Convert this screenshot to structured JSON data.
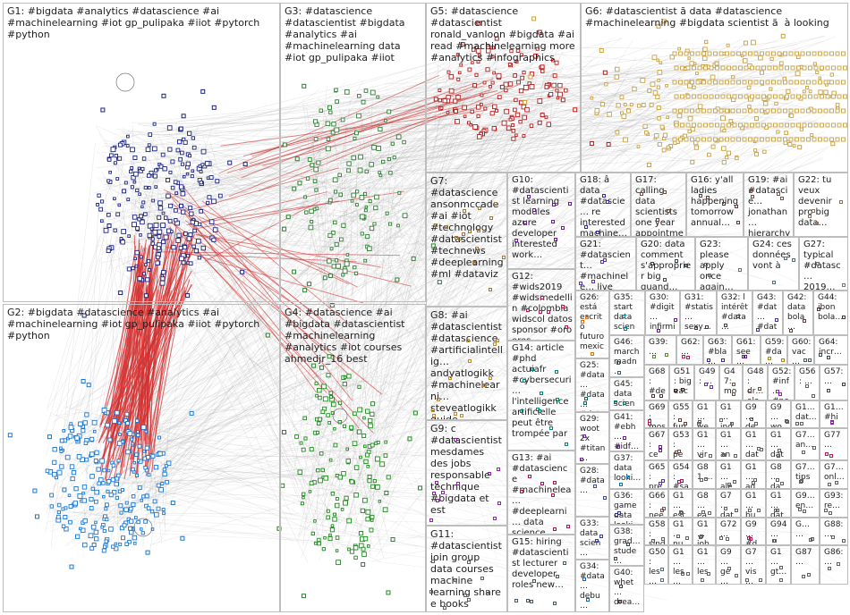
{
  "groups": [
    {
      "id": "G1",
      "label": "G1: #bigdata #analytics #datascience #ai #machinelearning #iot gp_pulipaka #iiot #pytorch #python",
      "color": "#1a237e"
    },
    {
      "id": "G2",
      "label": "G2: #bigdata #datascience #analytics #ai #machinelearning #iot gp_pulipaka #iiot #pytorch #python",
      "color": "#1976d2"
    },
    {
      "id": "G3",
      "label": "G3: #datascience #datascientist #bigdata #analytics #ai #machinelearning data #iot gp_pulipaka #iiot",
      "color": "#2e7d32"
    },
    {
      "id": "G4",
      "label": "G4: #datascience #ai #bigdata #datascientist #machinelearning #analytics #iot courses ahmedjr_16 best",
      "color": "#1b8a1b"
    },
    {
      "id": "G5",
      "label": "G5: #datascience #datascientist ronald_vanloon #bigdata #ai read #machinelearning more #analytics #infographics",
      "color": "#b71c1c"
    },
    {
      "id": "G6",
      "label": "G6: #datascientist ã data #datascience #machinelearning #bigdata scientist ã  à looking",
      "color": "#c8a040"
    },
    {
      "id": "G7",
      "label": "G7: #datascience ansonmccade #ai #iot #technology #datascientist #technews #deeplearning #ml #dataviz",
      "color": "#9c7a3c"
    },
    {
      "id": "G8",
      "label": "G8: #ai #datascientist #datascience #artificialintellig… andyatlogikk #machinelearni… steveatlogikk guide #dataengineerin…",
      "color": "#c28a2c"
    },
    {
      "id": "G9",
      "label": "G9: c #datascientist mesdames des jobs responsable technique #bigdata et est",
      "color": "#8e24aa"
    },
    {
      "id": "G10",
      "label": "G10: #datascientist learning modules azure developer interested work…",
      "color": "#6a1b9a"
    },
    {
      "id": "G11",
      "label": "G11: #datascientist join group data courses machine learning share e books",
      "color": "#616161"
    },
    {
      "id": "G12",
      "label": "G12: #wids2019 #widsmedellin #colombia widscol datos sponsor #oro eres…",
      "color": "#c2185b"
    },
    {
      "id": "G13",
      "label": "G13: #ai #datascience #machinelea… #deeplearni… data science #datascientist learn…",
      "color": "#ad1457"
    },
    {
      "id": "G14",
      "label": "G14: article #phd actuiafr #cybersecuri… l'intelligence artificielle peut être trompée par",
      "color": "#00897b"
    },
    {
      "id": "G15",
      "label": "G15: hiring #datascientist lecturer developer roles new…",
      "color": "#455a64"
    },
    {
      "id": "G16",
      "label": "G16: y'all ladies happening tomorrow annual…",
      "color": "#5d4037"
    },
    {
      "id": "G17",
      "label": "G17: calling data scientists one year appointme…",
      "color": "#6d4c41"
    },
    {
      "id": "G18",
      "label": "G18: â data #datascie… re interested machine…",
      "color": "#4527a0"
    },
    {
      "id": "G19",
      "label": "G19: #ai #datascie… jonathan… hierarchy needs…",
      "color": "#795548"
    },
    {
      "id": "G20",
      "label": "G20: data comment s'approprier big quand…",
      "color": "#37474f"
    },
    {
      "id": "G21",
      "label": "G21: #datascient… #machinele… live join…",
      "color": "#5e35b1"
    },
    {
      "id": "G22",
      "label": "G22: tu veux devenir pro big data…",
      "color": "#8d6e63"
    },
    {
      "id": "G23",
      "label": "G23: please apply once again…",
      "color": "#6d6d6d"
    },
    {
      "id": "G24",
      "label": "G24: ces données vont à",
      "color": "#546e7a"
    },
    {
      "id": "G25",
      "label": "G25: #data… #data… #data… #data…",
      "color": "#00695c"
    },
    {
      "id": "G26",
      "label": "G26: está escrito futuro mexic…",
      "color": "#ef6c00"
    },
    {
      "id": "G27",
      "label": "G27: typical #datasc… 2019…",
      "color": "#757575"
    },
    {
      "id": "G28",
      "label": "G28: #data…",
      "color": "#3949ab"
    },
    {
      "id": "G29",
      "label": "G29: woot 2x #titan…",
      "color": "#7b1fa2"
    },
    {
      "id": "G30",
      "label": "G30: #digit… infirmi…",
      "color": "#6a1b9a"
    },
    {
      "id": "G31",
      "label": "G31: #statis… sexy…",
      "color": "#4e342e"
    },
    {
      "id": "G32",
      "label": "G32: l intérêt #data…",
      "color": "#424242"
    },
    {
      "id": "G33",
      "label": "G33: data scien…",
      "color": "#303f9f"
    },
    {
      "id": "G34",
      "label": "G34: #data… debu…",
      "color": "#1565c0"
    },
    {
      "id": "G35",
      "label": "G35: start data scien…",
      "color": "#00838f"
    },
    {
      "id": "G36",
      "label": "G36: game data looki…",
      "color": "#283593"
    },
    {
      "id": "G37",
      "label": "G37: data looki…",
      "color": "#0277bd"
    },
    {
      "id": "G38",
      "label": "G38: grad… stude…",
      "color": "#37474f"
    },
    {
      "id": "G39",
      "label": "G39: …",
      "color": "#558b2f"
    },
    {
      "id": "G40",
      "label": "G40: whet… drea…",
      "color": "#4e342e"
    },
    {
      "id": "G41",
      "label": "G41: #ebh… #idf…",
      "color": "#6a1b9a"
    },
    {
      "id": "G42",
      "label": "G42: data bola…",
      "color": "#5d4037"
    },
    {
      "id": "G43",
      "label": "G43: #dat… #dat…",
      "color": "#512da8"
    },
    {
      "id": "G44",
      "label": "G44: ibon bola…",
      "color": "#4e342e"
    },
    {
      "id": "G45",
      "label": "G45: data scien…",
      "color": "#00796b"
    },
    {
      "id": "G46",
      "label": "G46: march madn…",
      "color": "#455a64"
    },
    {
      "id": "G47",
      "label": "G47: mo…",
      "color": "#795548"
    },
    {
      "id": "G48",
      "label": "G48: dr… ala…",
      "color": "#6d4c41"
    },
    {
      "id": "G49",
      "label": "G49: …",
      "color": "#5e35b1"
    },
    {
      "id": "G50",
      "label": "G50: les…",
      "color": "#546e7a"
    },
    {
      "id": "G51",
      "label": "G51: big eac…",
      "color": "#3e2723"
    },
    {
      "id": "G52",
      "label": "G52: #inf… #ne…",
      "color": "#8e24aa"
    },
    {
      "id": "G53",
      "label": "G53: pe… #af…",
      "color": "#6d4c41"
    },
    {
      "id": "G54",
      "label": "G54: #sa… #…",
      "color": "#ad1457"
    },
    {
      "id": "G55",
      "label": "G55: fun fact…",
      "color": "#5d4037"
    },
    {
      "id": "G56",
      "label": "G56: …",
      "color": "#616161"
    },
    {
      "id": "G57",
      "label": "G57: …",
      "color": "#424242"
    },
    {
      "id": "G58",
      "label": "G58: sind…",
      "color": "#616161"
    },
    {
      "id": "G59",
      "label": "G59: #da…",
      "color": "#b8860b"
    },
    {
      "id": "G60",
      "label": "G60: vac…",
      "color": "#455a64"
    },
    {
      "id": "G61",
      "label": "G61: see…",
      "color": "#6a1b9a"
    },
    {
      "id": "G62",
      "label": "G62: …",
      "color": "#c2185b"
    },
    {
      "id": "G63",
      "label": "G63: #bla…",
      "color": "#4527a0"
    },
    {
      "id": "G64",
      "label": "G64: incr…",
      "color": "#37474f"
    },
    {
      "id": "G65",
      "label": "G65: pre…",
      "color": "#5e35b1"
    },
    {
      "id": "G66",
      "label": "G66: nee…",
      "color": "#795548"
    },
    {
      "id": "G67",
      "label": "G67: ce…",
      "color": "#6a1b9a"
    },
    {
      "id": "G68",
      "label": "G68: #de…",
      "color": "#4e342e"
    },
    {
      "id": "G69",
      "label": "G69: mos…",
      "color": "#c2185b"
    },
    {
      "id": "G70",
      "label": "G1… we…",
      "color": "#616161"
    },
    {
      "id": "G71",
      "label": "G1… ind…",
      "color": "#616161"
    },
    {
      "id": "G72",
      "label": "G9… de…",
      "color": "#616161"
    },
    {
      "id": "G73",
      "label": "G9… wo…",
      "color": "#616161"
    },
    {
      "id": "G74",
      "label": "G1… dat…",
      "color": "#616161"
    },
    {
      "id": "G75",
      "label": "G1… #hi…",
      "color": "#8e24aa"
    },
    {
      "id": "G76",
      "label": "G1… vir…",
      "color": "#616161"
    },
    {
      "id": "G77",
      "label": "G1… an…",
      "color": "#616161"
    },
    {
      "id": "G78",
      "label": "G1… dat…",
      "color": "#616161"
    },
    {
      "id": "G79",
      "label": "G1… dat…",
      "color": "#616161"
    },
    {
      "id": "G80",
      "label": "G7… an…",
      "color": "#616161"
    },
    {
      "id": "G81",
      "label": "G77 …",
      "color": "#c2185b"
    },
    {
      "id": "G82",
      "label": "G81 …",
      "color": "#616161"
    },
    {
      "id": "G83",
      "label": "G1… ale…",
      "color": "#616161"
    },
    {
      "id": "G84",
      "label": "G1… aq…",
      "color": "#616161"
    },
    {
      "id": "G85",
      "label": "G8… da…",
      "color": "#616161"
    },
    {
      "id": "G86",
      "label": "G7… tips…",
      "color": "#616161"
    },
    {
      "id": "G87",
      "label": "G7… onl…",
      "color": "#616161"
    },
    {
      "id": "G88",
      "label": "G1… est…",
      "color": "#616161"
    },
    {
      "id": "G89",
      "label": "G8… ea…",
      "color": "#616161"
    },
    {
      "id": "G90",
      "label": "G7… dat…",
      "color": "#616161"
    },
    {
      "id": "G91",
      "label": "G1… bu…",
      "color": "#616161"
    },
    {
      "id": "G92",
      "label": "G1… dat…",
      "color": "#616161"
    },
    {
      "id": "G93",
      "label": "G9… en…",
      "color": "#616161"
    },
    {
      "id": "G94",
      "label": "G94 …",
      "color": "#616161"
    },
    {
      "id": "G95",
      "label": "G93: re…",
      "color": "#616161"
    },
    {
      "id": "G96",
      "label": "G1… nu…",
      "color": "#616161"
    },
    {
      "id": "G97",
      "label": "G1… job",
      "color": "#616161"
    },
    {
      "id": "G98",
      "label": "G72 …",
      "color": "#616161"
    },
    {
      "id": "G99",
      "label": "G9… #d…",
      "color": "#c2185b"
    },
    {
      "id": "G100",
      "label": "G… …",
      "color": "#616161"
    },
    {
      "id": "G101",
      "label": "G88: …",
      "color": "#616161"
    },
    {
      "id": "G102",
      "label": "G1… les…",
      "color": "#616161"
    },
    {
      "id": "G103",
      "label": "G1… les",
      "color": "#616161"
    },
    {
      "id": "G104",
      "label": "G9… ge…",
      "color": "#616161"
    },
    {
      "id": "G105",
      "label": "G7… vis…",
      "color": "#616161"
    },
    {
      "id": "G106",
      "label": "G1… gt…",
      "color": "#616161"
    },
    {
      "id": "G107",
      "label": "G87 …",
      "color": "#616161"
    },
    {
      "id": "G108",
      "label": "G86: …",
      "color": "#616161"
    }
  ]
}
